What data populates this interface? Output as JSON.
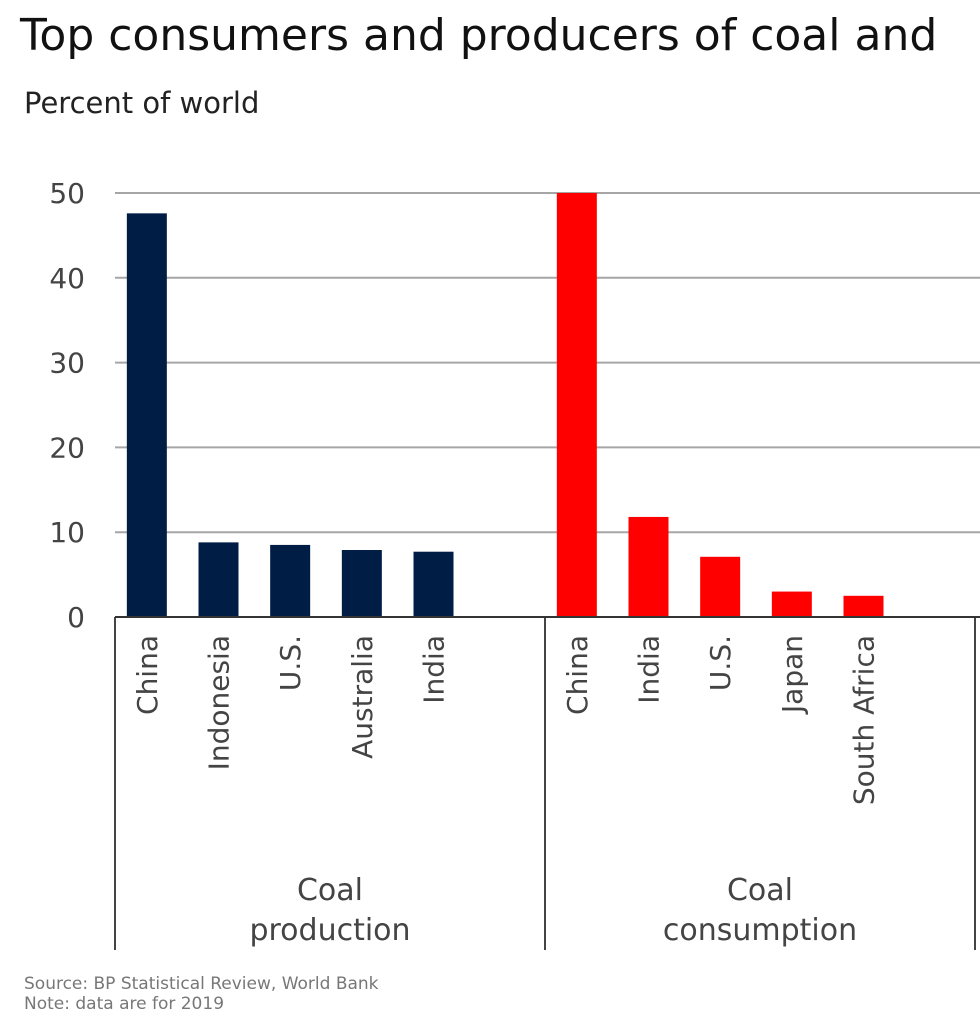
{
  "chart_data": {
    "type": "bar",
    "title": "Top consumers and producers of coal and",
    "subtitle": "Percent of world",
    "ylabel": "Percent of world",
    "ylim": [
      0,
      50
    ],
    "yticks": [
      0,
      10,
      20,
      30,
      40,
      50
    ],
    "grid": true,
    "groups": [
      {
        "name": "Coal production",
        "label_lines": [
          "Coal",
          "production"
        ],
        "color": "#001E45",
        "categories": [
          "China",
          "Indonesia",
          "U.S.",
          "Australia",
          "India"
        ],
        "values": [
          47.6,
          8.8,
          8.5,
          7.9,
          7.7
        ]
      },
      {
        "name": "Coal consumption",
        "label_lines": [
          "Coal",
          "consumption"
        ],
        "color": "#FF0000",
        "categories": [
          "China",
          "India",
          "U.S.",
          "Japan",
          "South Africa"
        ],
        "values": [
          51.7,
          11.8,
          7.1,
          3.0,
          2.5
        ]
      }
    ]
  },
  "footer": {
    "source": "Source: BP Statistical Review, World Bank",
    "note": "Note: data are for 2019"
  }
}
